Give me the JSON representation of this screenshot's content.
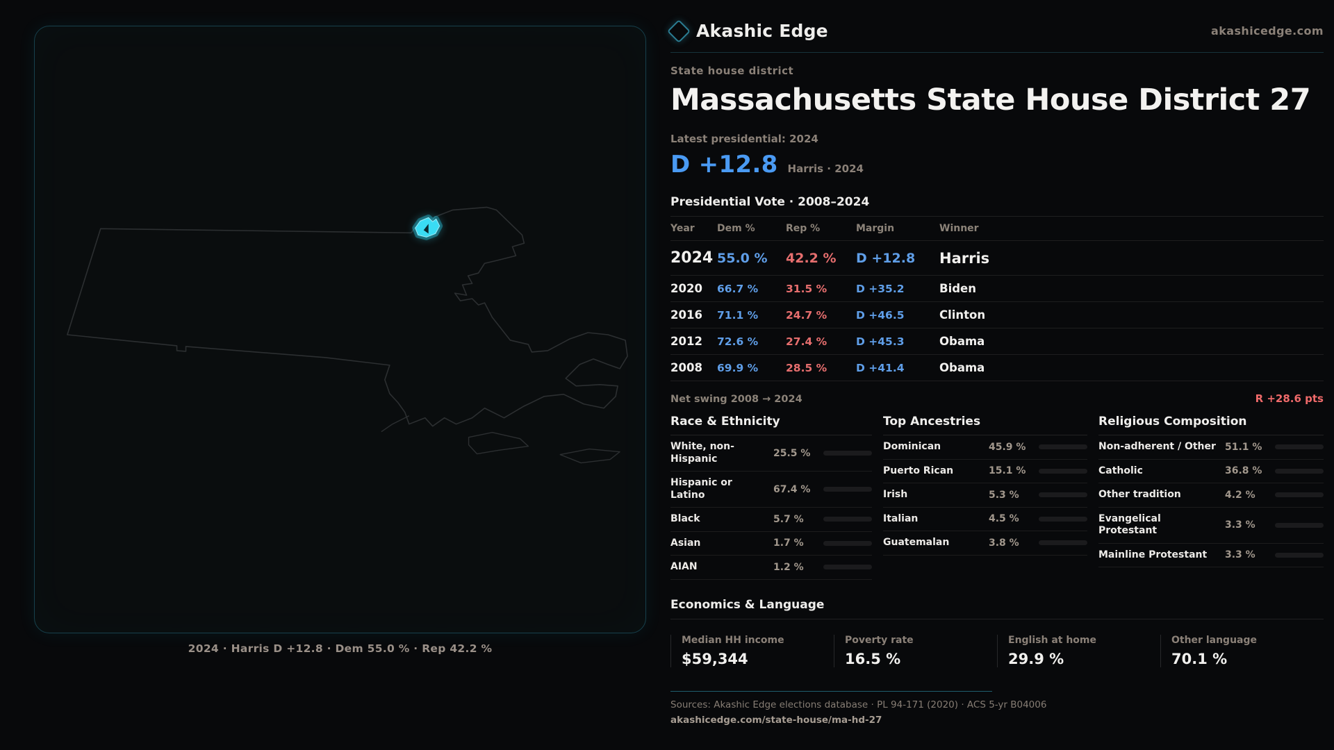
{
  "header": {
    "brand": "Akashic Edge",
    "site": "akashicedge.com",
    "kicker": "State house district",
    "title": "Massachusetts State House District 27"
  },
  "latest": {
    "label": "Latest presidential: 2024",
    "margin": "D +12.8",
    "sub": "Harris · 2024"
  },
  "map": {
    "caption": "2024 · Harris D +12.8 · Dem 55.0 % · Rep 42.2 %",
    "highlight_color": "#3adcf4",
    "outline_color": "#2c2f31"
  },
  "vote_table": {
    "title": "Presidential Vote · 2008–2024",
    "columns": {
      "year": "Year",
      "dem": "Dem %",
      "rep": "Rep %",
      "margin": "Margin",
      "winner": "Winner"
    },
    "rows": [
      {
        "year": "2024",
        "dem": "55.0 %",
        "rep": "42.2 %",
        "margin": "D +12.8",
        "winner": "Harris"
      },
      {
        "year": "2020",
        "dem": "66.7 %",
        "rep": "31.5 %",
        "margin": "D +35.2",
        "winner": "Biden"
      },
      {
        "year": "2016",
        "dem": "71.1 %",
        "rep": "24.7 %",
        "margin": "D +46.5",
        "winner": "Clinton"
      },
      {
        "year": "2012",
        "dem": "72.6 %",
        "rep": "27.4 %",
        "margin": "D +45.3",
        "winner": "Obama"
      },
      {
        "year": "2008",
        "dem": "69.9 %",
        "rep": "28.5 %",
        "margin": "D +41.4",
        "winner": "Obama"
      }
    ]
  },
  "net_swing": {
    "label": "Net swing 2008 → 2024",
    "value": "R +28.6 pts"
  },
  "race": {
    "title": "Race & Ethnicity",
    "rows": [
      {
        "label": "White, non-Hispanic",
        "value": "25.5 %",
        "pct": 25.5,
        "color": "#93aecd"
      },
      {
        "label": "Hispanic or Latino",
        "value": "67.4 %",
        "pct": 67.4,
        "color": "#e3a13a"
      },
      {
        "label": "Black",
        "value": "5.7 %",
        "pct": 5.7,
        "color": "#8d7bef"
      },
      {
        "label": "Asian",
        "value": "1.7 %",
        "pct": 1.7,
        "color": "#49c5b1"
      },
      {
        "label": "AIAN",
        "value": "1.2 %",
        "pct": 1.2,
        "color": "#d98a35"
      }
    ]
  },
  "ancestries": {
    "title": "Top Ancestries",
    "rows": [
      {
        "label": "Dominican",
        "value": "45.9 %",
        "pct": 45.9,
        "color": "#e3a13a"
      },
      {
        "label": "Puerto Rican",
        "value": "15.1 %",
        "pct": 15.1,
        "color": "#e3a13a"
      },
      {
        "label": "Irish",
        "value": "5.3 %",
        "pct": 5.3,
        "color": "#9db6d3"
      },
      {
        "label": "Italian",
        "value": "4.5 %",
        "pct": 4.5,
        "color": "#9db6d3"
      },
      {
        "label": "Guatemalan",
        "value": "3.8 %",
        "pct": 3.8,
        "color": "#e3a13a"
      }
    ]
  },
  "religion": {
    "title": "Religious Composition",
    "rows": [
      {
        "label": "Non-adherent / Other",
        "value": "51.1 %",
        "pct": 51.1,
        "color": "#7b8ba0"
      },
      {
        "label": "Catholic",
        "value": "36.8 %",
        "pct": 36.8,
        "color": "#e0b52f"
      },
      {
        "label": "Other tradition",
        "value": "4.2 %",
        "pct": 4.2,
        "color": "#9db6d3"
      },
      {
        "label": "Evangelical Protestant",
        "value": "3.3 %",
        "pct": 3.3,
        "color": "#e66e6e"
      },
      {
        "label": "Mainline Protestant",
        "value": "3.3 %",
        "pct": 3.3,
        "color": "#5f9ee8"
      }
    ]
  },
  "economics": {
    "title": "Economics & Language",
    "stats": [
      {
        "label": "Median HH income",
        "value": "$59,344"
      },
      {
        "label": "Poverty rate",
        "value": "16.5 %"
      },
      {
        "label": "English at home",
        "value": "29.9 %"
      },
      {
        "label": "Other language",
        "value": "70.1 %"
      }
    ]
  },
  "footer": {
    "sources": "Sources: Akashic Edge elections database · PL 94-171 (2020) · ACS 5-yr B04006",
    "permalink": "akashicedge.com/state-house/ma-hd-27"
  }
}
